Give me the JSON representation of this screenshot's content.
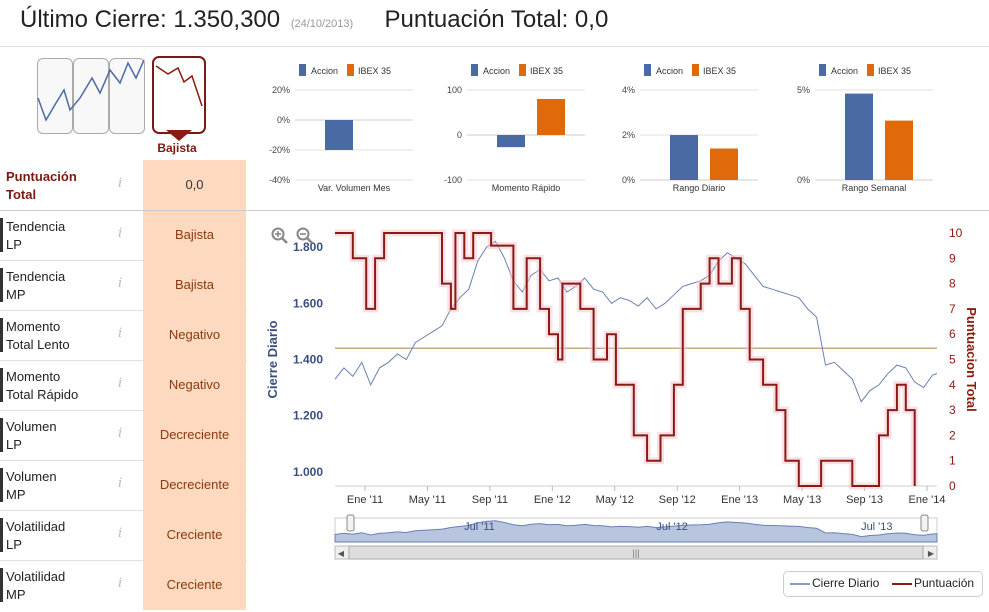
{
  "header": {
    "cierre_label": "Último Cierre:",
    "cierre_value": "1.350,300",
    "cierre_date": "(24/10/2013)",
    "total_label": "Puntuación Total:",
    "total_value": "0,0"
  },
  "trend_selector": {
    "selected_label": "Bajista"
  },
  "metrics": [
    {
      "label_1": "Puntuación",
      "label_2": "Total",
      "info": "i",
      "value": "0,0"
    },
    {
      "label_1": "Tendencia",
      "label_2": "LP",
      "info": "i",
      "value": "Bajista"
    },
    {
      "label_1": "Tendencia",
      "label_2": "MP",
      "info": "i",
      "value": "Bajista"
    },
    {
      "label_1": "Momento",
      "label_2": "Total Lento",
      "info": "i",
      "value": "Negativo"
    },
    {
      "label_1": "Momento",
      "label_2": "Total Rápido",
      "info": "i",
      "value": "Negativo"
    },
    {
      "label_1": "Volumen",
      "label_2": "LP",
      "info": "i",
      "value": "Decreciente"
    },
    {
      "label_1": "Volumen",
      "label_2": "MP",
      "info": "i",
      "value": "Decreciente"
    },
    {
      "label_1": "Volatilidad",
      "label_2": "LP",
      "info": "i",
      "value": "Creciente"
    },
    {
      "label_1": "Volatilidad",
      "label_2": "MP",
      "info": "i",
      "value": "Creciente"
    }
  ],
  "colors": {
    "accion": "#4a6aa5",
    "ibex": "#e06a0a",
    "puntuacion": "#8b1a10",
    "value_bg": "#fcd9bf"
  },
  "chart_data": [
    {
      "type": "bar",
      "legend": [
        "Accion",
        "IBEX 35"
      ],
      "xlabel": "Var. Volumen Mes",
      "yticks": [
        "20%",
        "0%",
        "-20%",
        "-40%"
      ],
      "ylim": [
        -40,
        20
      ],
      "values": [
        -20,
        0
      ]
    },
    {
      "type": "bar",
      "legend": [
        "Accion",
        "IBEX 35"
      ],
      "xlabel": "Momento Rápido",
      "yticks": [
        "100",
        "0",
        "-100"
      ],
      "ylim": [
        -100,
        100
      ],
      "values": [
        -27,
        80
      ]
    },
    {
      "type": "bar",
      "legend": [
        "Accion",
        "IBEX 35"
      ],
      "xlabel": "Rango Diario",
      "yticks": [
        "4%",
        "2%",
        "0%"
      ],
      "ylim": [
        0,
        4
      ],
      "values": [
        2.0,
        1.4
      ]
    },
    {
      "type": "bar",
      "legend": [
        "Accion",
        "IBEX 35"
      ],
      "xlabel": "Rango Semanal",
      "yticks": [
        "5%",
        "0%"
      ],
      "ylim": [
        0,
        5
      ],
      "values": [
        4.8,
        3.3
      ]
    },
    {
      "type": "line",
      "ylabel_left": "Cierre Diario",
      "ylabel_right": "Puntuacion Total",
      "yticks_left": [
        "1.800",
        "1.600",
        "1.400",
        "1.200",
        "1.000"
      ],
      "yticks_right": [
        "10",
        "9",
        "8",
        "7",
        "6",
        "5",
        "4",
        "3",
        "2",
        "1",
        "0"
      ],
      "xticks": [
        "Ene '11",
        "May '11",
        "Sep '11",
        "Ene '12",
        "May '12",
        "Sep '12",
        "Ene '13",
        "May '13",
        "Sep '13",
        "Ene '14"
      ],
      "navigator_labels": [
        "Jul '11",
        "Jul '12",
        "Jul '13"
      ],
      "ylim_left": [
        950,
        1850
      ],
      "ylim_right": [
        0,
        10
      ],
      "reference_line_left": 1440,
      "legend": [
        "Cierre Diario",
        "Puntuación"
      ],
      "cierre_series": [
        [
          0,
          1330
        ],
        [
          4,
          1370
        ],
        [
          8,
          1340
        ],
        [
          12,
          1390
        ],
        [
          16,
          1310
        ],
        [
          20,
          1370
        ],
        [
          24,
          1390
        ],
        [
          28,
          1420
        ],
        [
          32,
          1400
        ],
        [
          36,
          1460
        ],
        [
          40,
          1480
        ],
        [
          44,
          1500
        ],
        [
          48,
          1520
        ],
        [
          52,
          1580
        ],
        [
          56,
          1620
        ],
        [
          60,
          1650
        ],
        [
          64,
          1750
        ],
        [
          68,
          1800
        ],
        [
          72,
          1820
        ],
        [
          76,
          1760
        ],
        [
          80,
          1680
        ],
        [
          84,
          1640
        ],
        [
          88,
          1700
        ],
        [
          92,
          1720
        ],
        [
          96,
          1680
        ],
        [
          100,
          1690
        ],
        [
          104,
          1640
        ],
        [
          108,
          1660
        ],
        [
          112,
          1690
        ],
        [
          116,
          1650
        ],
        [
          120,
          1640
        ],
        [
          124,
          1600
        ],
        [
          128,
          1620
        ],
        [
          132,
          1610
        ],
        [
          136,
          1590
        ],
        [
          140,
          1620
        ],
        [
          144,
          1580
        ],
        [
          148,
          1600
        ],
        [
          152,
          1630
        ],
        [
          156,
          1660
        ],
        [
          160,
          1670
        ],
        [
          164,
          1680
        ],
        [
          168,
          1700
        ],
        [
          172,
          1750
        ],
        [
          176,
          1780
        ],
        [
          180,
          1760
        ],
        [
          184,
          1740
        ],
        [
          188,
          1700
        ],
        [
          192,
          1660
        ],
        [
          196,
          1650
        ],
        [
          200,
          1640
        ],
        [
          204,
          1630
        ],
        [
          208,
          1620
        ],
        [
          212,
          1580
        ],
        [
          216,
          1550
        ],
        [
          220,
          1380
        ],
        [
          224,
          1390
        ],
        [
          228,
          1360
        ],
        [
          232,
          1330
        ],
        [
          236,
          1250
        ],
        [
          240,
          1290
        ],
        [
          244,
          1310
        ],
        [
          248,
          1350
        ],
        [
          252,
          1380
        ],
        [
          256,
          1370
        ],
        [
          260,
          1320
        ],
        [
          264,
          1300
        ],
        [
          268,
          1345
        ],
        [
          270,
          1350
        ]
      ],
      "puntuacion_series": [
        [
          0,
          10
        ],
        [
          8,
          10
        ],
        [
          8,
          9
        ],
        [
          14,
          9
        ],
        [
          14,
          7
        ],
        [
          18,
          7
        ],
        [
          18,
          9
        ],
        [
          22,
          9
        ],
        [
          22,
          10
        ],
        [
          48,
          10
        ],
        [
          48,
          8
        ],
        [
          52,
          8
        ],
        [
          52,
          7
        ],
        [
          54,
          7
        ],
        [
          54,
          10
        ],
        [
          58,
          10
        ],
        [
          58,
          9
        ],
        [
          62,
          9
        ],
        [
          62,
          10
        ],
        [
          70,
          10
        ],
        [
          70,
          9.5
        ],
        [
          80,
          9.5
        ],
        [
          80,
          7
        ],
        [
          86,
          7
        ],
        [
          86,
          9
        ],
        [
          92,
          9
        ],
        [
          92,
          7
        ],
        [
          96,
          7
        ],
        [
          96,
          6
        ],
        [
          100,
          6
        ],
        [
          100,
          5
        ],
        [
          102,
          5
        ],
        [
          102,
          8
        ],
        [
          110,
          8
        ],
        [
          110,
          7
        ],
        [
          116,
          7
        ],
        [
          116,
          5
        ],
        [
          122,
          5
        ],
        [
          122,
          6
        ],
        [
          126,
          6
        ],
        [
          126,
          4
        ],
        [
          134,
          4
        ],
        [
          134,
          2
        ],
        [
          140,
          2
        ],
        [
          140,
          1
        ],
        [
          146,
          1
        ],
        [
          146,
          2
        ],
        [
          152,
          2
        ],
        [
          152,
          4
        ],
        [
          156,
          4
        ],
        [
          156,
          7
        ],
        [
          164,
          7
        ],
        [
          164,
          8
        ],
        [
          168,
          8
        ],
        [
          168,
          9
        ],
        [
          172,
          9
        ],
        [
          172,
          8
        ],
        [
          178,
          8
        ],
        [
          178,
          9
        ],
        [
          182,
          9
        ],
        [
          182,
          7
        ],
        [
          186,
          7
        ],
        [
          186,
          5
        ],
        [
          192,
          5
        ],
        [
          192,
          4
        ],
        [
          198,
          4
        ],
        [
          198,
          3
        ],
        [
          202,
          3
        ],
        [
          202,
          1
        ],
        [
          208,
          1
        ],
        [
          208,
          0
        ],
        [
          218,
          0
        ],
        [
          218,
          1
        ],
        [
          232,
          1
        ],
        [
          232,
          0
        ],
        [
          244,
          0
        ],
        [
          244,
          2
        ],
        [
          248,
          2
        ],
        [
          248,
          3
        ],
        [
          252,
          3
        ],
        [
          252,
          4
        ],
        [
          256,
          4
        ],
        [
          256,
          3
        ],
        [
          260,
          3
        ],
        [
          260,
          0
        ]
      ]
    }
  ]
}
